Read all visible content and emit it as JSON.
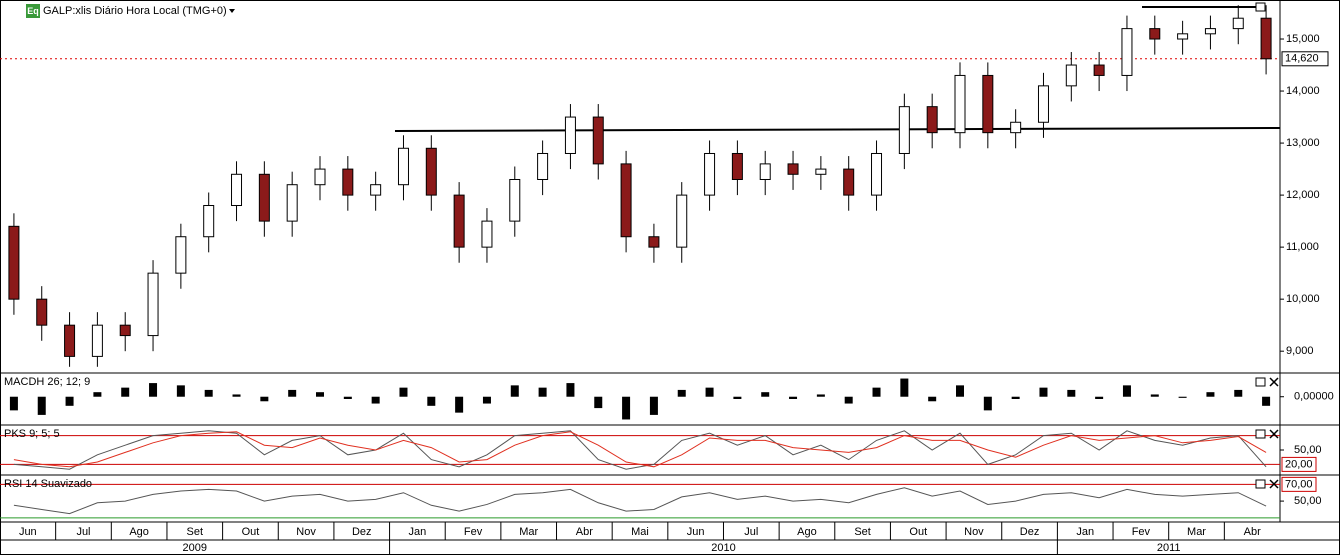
{
  "chart_data": {
    "type": "candlestick",
    "title": "GALP:xlis Diário Hora Local (TMG+0)",
    "badge": "Eq",
    "categories": [
      "Jun",
      null,
      "Jul",
      null,
      "Ago",
      null,
      "Set",
      null,
      "Out",
      null,
      "Nov",
      null,
      "Dez",
      null,
      "Jan",
      null,
      "Fev",
      null,
      "Mar",
      null,
      "Abr",
      null,
      "Mai",
      null,
      "Jun",
      null,
      "Jul",
      null,
      "Ago",
      null,
      "Set",
      null,
      "Out",
      null,
      "Nov",
      null,
      "Dez",
      null,
      "Jan",
      null,
      "Fev",
      null,
      "Mar",
      null,
      "Abr",
      null
    ],
    "years": [
      "2009",
      "2010",
      "2011"
    ],
    "open": [
      11400,
      10000,
      9500,
      8900,
      9500,
      9300,
      10500,
      11200,
      11800,
      12400,
      11500,
      12200,
      12500,
      12000,
      12200,
      12900,
      12000,
      11000,
      11500,
      12300,
      12800,
      13500,
      12600,
      11200,
      11000,
      12000,
      12800,
      12300,
      12600,
      12400,
      12500,
      12000,
      12800,
      13700,
      13200,
      14300,
      13200,
      13400,
      14100,
      14500,
      14300,
      15200,
      15000,
      15100,
      15200,
      15400
    ],
    "high": [
      11650,
      10250,
      9750,
      9750,
      9750,
      10750,
      11450,
      12050,
      12650,
      12650,
      12450,
      12750,
      12750,
      12450,
      13150,
      13150,
      12250,
      11750,
      12550,
      13050,
      13750,
      13750,
      12850,
      11450,
      12250,
      13050,
      13050,
      12850,
      12850,
      12750,
      12750,
      13050,
      13950,
      13950,
      14550,
      14550,
      13650,
      14350,
      14750,
      14750,
      15450,
      15450,
      15350,
      15450,
      15650,
      15650
    ],
    "low": [
      9700,
      9200,
      8700,
      8700,
      9000,
      9000,
      10200,
      10900,
      11500,
      11200,
      11200,
      11900,
      11700,
      11700,
      11900,
      11700,
      10700,
      10700,
      11200,
      12000,
      12500,
      12300,
      10900,
      10700,
      10700,
      11700,
      12000,
      12000,
      12100,
      12100,
      11700,
      11700,
      12500,
      12900,
      12900,
      12900,
      12900,
      13100,
      13800,
      14000,
      14000,
      14700,
      14700,
      14800,
      14900,
      14320
    ],
    "close": [
      10000,
      9500,
      8900,
      9500,
      9300,
      10500,
      11200,
      11800,
      12400,
      11500,
      12200,
      12500,
      12000,
      12200,
      12900,
      12000,
      11000,
      11500,
      12300,
      12800,
      13500,
      12600,
      11200,
      11000,
      12000,
      12800,
      12300,
      12600,
      12400,
      12500,
      12000,
      12800,
      13700,
      13200,
      14300,
      13200,
      13400,
      14100,
      14500,
      14300,
      15200,
      15000,
      15100,
      15200,
      15400,
      14620
    ],
    "up_color": "#ffffff",
    "down_color": "#8b1a1a",
    "ylim": [
      8600,
      15750
    ],
    "yticks": [
      {
        "value": 9000,
        "label": "9,000"
      },
      {
        "value": 10000,
        "label": "10,000"
      },
      {
        "value": 11000,
        "label": "11,000"
      },
      {
        "value": 12000,
        "label": "12,000"
      },
      {
        "value": 13000,
        "label": "13,000"
      },
      {
        "value": 14000,
        "label": "14,000"
      },
      {
        "value": 15000,
        "label": "15,000"
      }
    ],
    "last_price": {
      "value": 14620,
      "label": "14,620"
    },
    "indicators": [
      {
        "type": "histogram",
        "title": "MACDH 26; 12; 9",
        "color": "#000000",
        "values": [
          -60,
          -80,
          -40,
          20,
          40,
          60,
          50,
          30,
          10,
          -20,
          30,
          20,
          -10,
          -30,
          40,
          -40,
          -70,
          -30,
          50,
          40,
          60,
          -50,
          -100,
          -80,
          30,
          40,
          -10,
          20,
          -10,
          10,
          -30,
          40,
          80,
          -20,
          50,
          -60,
          -10,
          40,
          30,
          -10,
          50,
          10,
          -5,
          20,
          30,
          -40
        ],
        "ylim": [
          -120,
          100
        ],
        "yticks": [
          {
            "value": 0,
            "label": "0,00000"
          }
        ],
        "levels": []
      },
      {
        "type": "line",
        "title": "PKS 9; 5; 5",
        "series": [
          {
            "color": "#555555",
            "values": [
              20,
              15,
              10,
              40,
              60,
              80,
              85,
              90,
              85,
              40,
              70,
              80,
              40,
              50,
              85,
              30,
              15,
              40,
              80,
              85,
              90,
              30,
              10,
              20,
              70,
              85,
              60,
              80,
              40,
              60,
              30,
              70,
              90,
              50,
              85,
              20,
              40,
              80,
              85,
              50,
              90,
              70,
              60,
              75,
              80,
              15
            ]
          },
          {
            "color": "#e03020",
            "values": [
              30,
              20,
              15,
              25,
              45,
              65,
              80,
              85,
              88,
              60,
              55,
              75,
              60,
              50,
              70,
              55,
              25,
              30,
              60,
              80,
              88,
              60,
              25,
              15,
              40,
              75,
              70,
              70,
              55,
              50,
              45,
              55,
              80,
              70,
              70,
              50,
              35,
              60,
              80,
              70,
              75,
              80,
              65,
              70,
              78,
              45
            ]
          }
        ],
        "ylim": [
          0,
          100
        ],
        "yticks": [
          {
            "value": 50,
            "label": "50,00"
          }
        ],
        "levels": [
          {
            "value": 80,
            "color": "#cc0000"
          },
          {
            "value": 20,
            "color": "#cc0000",
            "label": "20,00"
          }
        ]
      },
      {
        "type": "line",
        "title": "RSI 14 Suavizado",
        "series": [
          {
            "color": "#555555",
            "values": [
              45,
              40,
              35,
              48,
              50,
              58,
              62,
              64,
              62,
              50,
              56,
              58,
              50,
              52,
              60,
              45,
              38,
              46,
              58,
              60,
              64,
              48,
              38,
              40,
              55,
              60,
              52,
              56,
              50,
              52,
              48,
              58,
              66,
              56,
              62,
              46,
              50,
              58,
              60,
              54,
              64,
              58,
              56,
              58,
              60,
              44
            ]
          }
        ],
        "ylim": [
          25,
          80
        ],
        "yticks": [
          {
            "value": 50,
            "label": "50,00"
          }
        ],
        "levels": [
          {
            "value": 70,
            "color": "#cc0000",
            "label": "70,00"
          },
          {
            "value": 30,
            "color": "#2a9a2a"
          }
        ]
      }
    ]
  }
}
